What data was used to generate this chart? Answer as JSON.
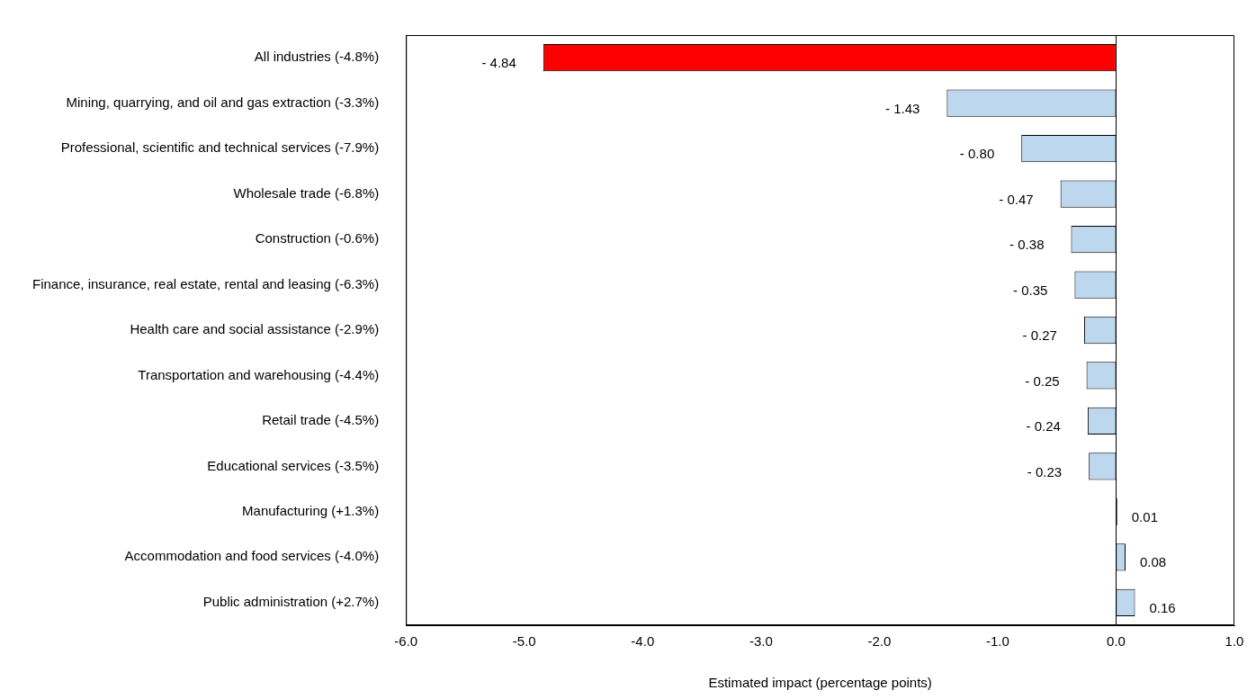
{
  "chart_data": {
    "type": "bar",
    "orientation": "horizontal",
    "xlabel": "Estimated impact (percentage points)",
    "categories": [
      "All industries (-4.8%)",
      "Mining, quarrying, and oil and gas extraction (-3.3%)",
      "Professional, scientific and technical services (-7.9%)",
      "Wholesale trade (-6.8%)",
      "Construction (-0.6%)",
      "Finance, insurance, real estate, rental and leasing (-6.3%)",
      "Health care and social assistance (-2.9%)",
      "Transportation and warehousing (-4.4%)",
      "Retail trade (-4.5%)",
      "Educational services (-3.5%)",
      "Manufacturing (+1.3%)",
      "Accommodation and food services (-4.0%)",
      "Public administration (+2.7%)"
    ],
    "values": [
      -4.84,
      -1.43,
      -0.8,
      -0.47,
      -0.38,
      -0.35,
      -0.27,
      -0.25,
      -0.24,
      -0.23,
      0.01,
      0.08,
      0.16
    ],
    "value_labels": [
      "- 4.84",
      "- 1.43",
      "- 0.80",
      "- 0.47",
      "- 0.38",
      "- 0.35",
      "- 0.27",
      "- 0.25",
      "- 0.24",
      "- 0.23",
      "0.01",
      "0.08",
      "0.16"
    ],
    "colors": [
      "#ff0000",
      "#bdd7ee",
      "#bdd7ee",
      "#bdd7ee",
      "#bdd7ee",
      "#bdd7ee",
      "#bdd7ee",
      "#bdd7ee",
      "#bdd7ee",
      "#bdd7ee",
      "#000000",
      "#bdd7ee",
      "#bdd7ee"
    ],
    "xlim": [
      -6,
      1
    ],
    "xticks": [
      {
        "value": -6,
        "label": "-6.0"
      },
      {
        "value": -5,
        "label": "-5.0"
      },
      {
        "value": -4,
        "label": "-4.0"
      },
      {
        "value": -3,
        "label": "-3.0"
      },
      {
        "value": -2,
        "label": "-2.0"
      },
      {
        "value": -1,
        "label": "-1.0"
      },
      {
        "value": 0,
        "label": "0.0"
      },
      {
        "value": 1,
        "label": "1.0"
      }
    ],
    "legend": false
  }
}
